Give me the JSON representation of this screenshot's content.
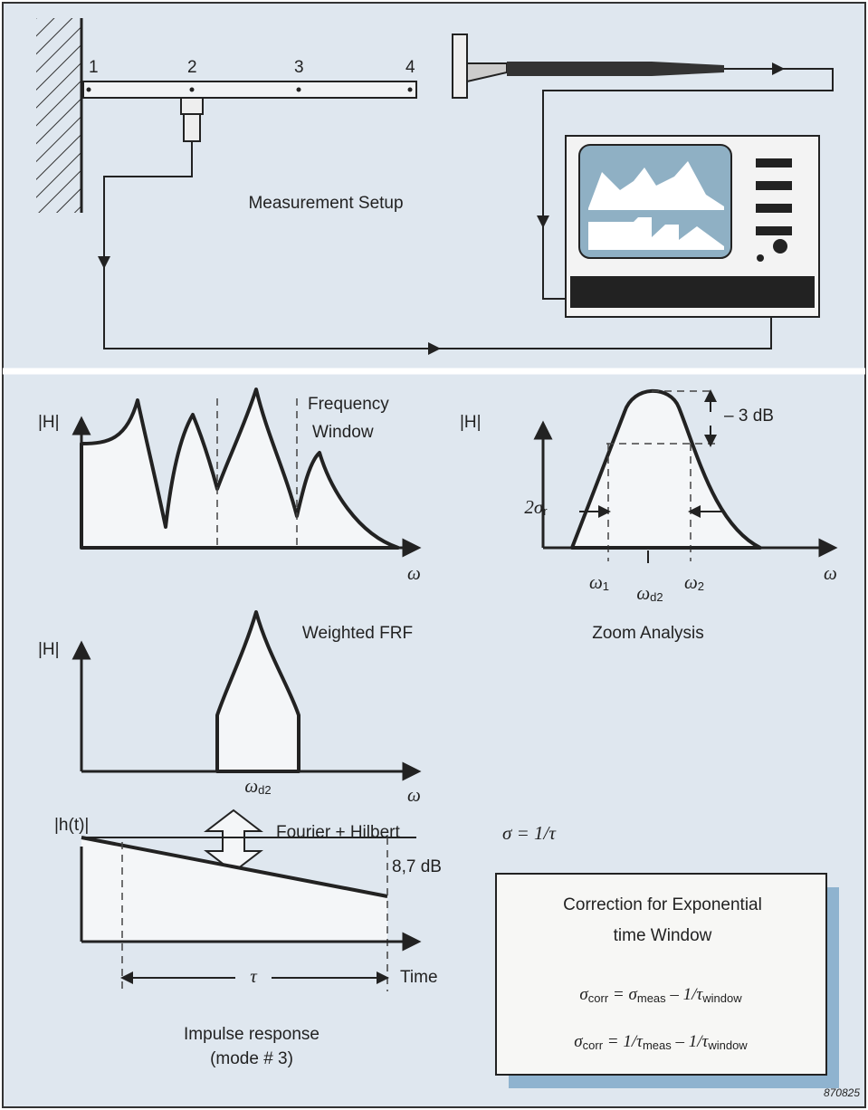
{
  "setup": {
    "points": [
      "1",
      "2",
      "3",
      "4"
    ],
    "title": "Measurement Setup"
  },
  "frf": {
    "y_label": "|H|",
    "x_label": "ω",
    "window_lines": [
      "Frequency",
      "Window"
    ]
  },
  "zoom": {
    "y_label": "|H|",
    "x_label": "ω",
    "db_label": "– 3 dB",
    "sigma_label": [
      {
        "t": "2σ"
      },
      {
        "sub": "r"
      }
    ],
    "w1": [
      {
        "t": "ω"
      },
      {
        "sub": "1"
      }
    ],
    "wd2": [
      {
        "t": "ω"
      },
      {
        "sub": "d2"
      }
    ],
    "w2": [
      {
        "t": "ω"
      },
      {
        "sub": "2"
      }
    ],
    "caption": "Zoom Analysis"
  },
  "weighted": {
    "caption": "Weighted FRF",
    "y_label": "|H|",
    "x_label": "ω",
    "wd2": [
      {
        "t": "ω"
      },
      {
        "sub": "d2"
      }
    ]
  },
  "transform": "Fourier + Hilbert",
  "impulse": {
    "y_label": "|h(t)|",
    "db_label": "8,7 dB",
    "tau": "τ",
    "x_label": "Time",
    "caption": [
      "Impulse response",
      "(mode # 3)"
    ]
  },
  "sigma_eq": "σ = 1/τ",
  "box": {
    "title": [
      "Correction for Exponential",
      "time Window"
    ],
    "formulas": [
      [
        {
          "t": "σ"
        },
        {
          "sub": "corr"
        },
        {
          "t": " = σ"
        },
        {
          "sub": "meas"
        },
        {
          "t": " – 1/τ"
        },
        {
          "sub": "window"
        }
      ],
      [
        {
          "t": "σ"
        },
        {
          "sub": "corr"
        },
        {
          "t": " = 1/τ"
        },
        {
          "sub": "meas"
        },
        {
          "t": " – 1/τ"
        },
        {
          "sub": "window"
        }
      ]
    ]
  },
  "figure_id": "870825"
}
